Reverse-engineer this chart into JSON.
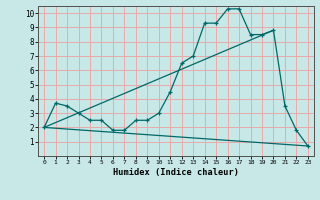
{
  "xlabel": "Humidex (Indice chaleur)",
  "ylabel": "",
  "bg_color": "#c8e8e8",
  "grid_color": "#e8aaaa",
  "line_color": "#006868",
  "xlim": [
    -0.5,
    23.5
  ],
  "ylim": [
    0,
    10.5
  ],
  "xticks": [
    0,
    1,
    2,
    3,
    4,
    5,
    6,
    7,
    8,
    9,
    10,
    11,
    12,
    13,
    14,
    15,
    16,
    17,
    18,
    19,
    20,
    21,
    22,
    23
  ],
  "yticks": [
    1,
    2,
    3,
    4,
    5,
    6,
    7,
    8,
    9,
    10
  ],
  "curve1_x": [
    0,
    1,
    2,
    3,
    4,
    5,
    6,
    7,
    8,
    9,
    10,
    11,
    12,
    13,
    14,
    15,
    16,
    17,
    18,
    19,
    20,
    21,
    22,
    23
  ],
  "curve1_y": [
    2.0,
    3.7,
    3.5,
    3.0,
    2.5,
    2.5,
    1.8,
    1.8,
    2.5,
    2.5,
    3.0,
    4.5,
    6.5,
    7.0,
    9.3,
    9.3,
    10.3,
    10.3,
    8.5,
    8.5,
    8.8,
    3.5,
    1.8,
    0.7
  ],
  "curve2_x": [
    0,
    23
  ],
  "curve2_y": [
    2.0,
    0.7
  ],
  "curve3_x": [
    0,
    20
  ],
  "curve3_y": [
    2.0,
    8.8
  ]
}
